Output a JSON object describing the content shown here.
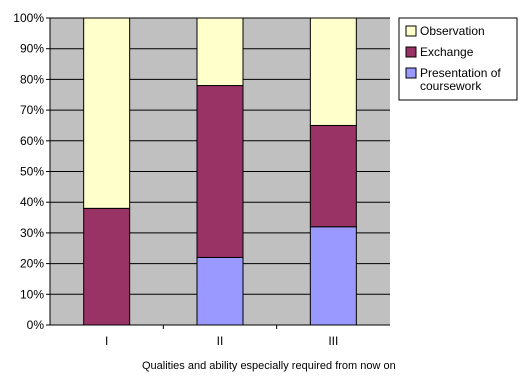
{
  "chart_data": {
    "type": "bar",
    "stacked": true,
    "percent": true,
    "categories": [
      "I",
      "II",
      "III"
    ],
    "series": [
      {
        "name": "Presentation of coursework",
        "values": [
          0,
          22,
          32
        ],
        "color": "#9999ff"
      },
      {
        "name": "Exchange",
        "values": [
          38,
          56,
          33
        ],
        "color": "#993366"
      },
      {
        "name": "Observation",
        "values": [
          62,
          22,
          35
        ],
        "color": "#ffffcc"
      }
    ],
    "xlabel": "Qualities and ability especially required from now on",
    "ylim": [
      0,
      100
    ],
    "yticks": [
      "0%",
      "10%",
      "20%",
      "30%",
      "40%",
      "50%",
      "60%",
      "70%",
      "80%",
      "90%",
      "100%"
    ],
    "grid": true,
    "plot_background": "#c0c0c0",
    "legend_position": "right",
    "legend": {
      "entries": [
        {
          "label": "Observation",
          "color": "#ffffcc"
        },
        {
          "label": "Exchange",
          "color": "#993366"
        },
        {
          "label": "Presentation of coursework",
          "color": "#9999ff"
        }
      ]
    }
  }
}
